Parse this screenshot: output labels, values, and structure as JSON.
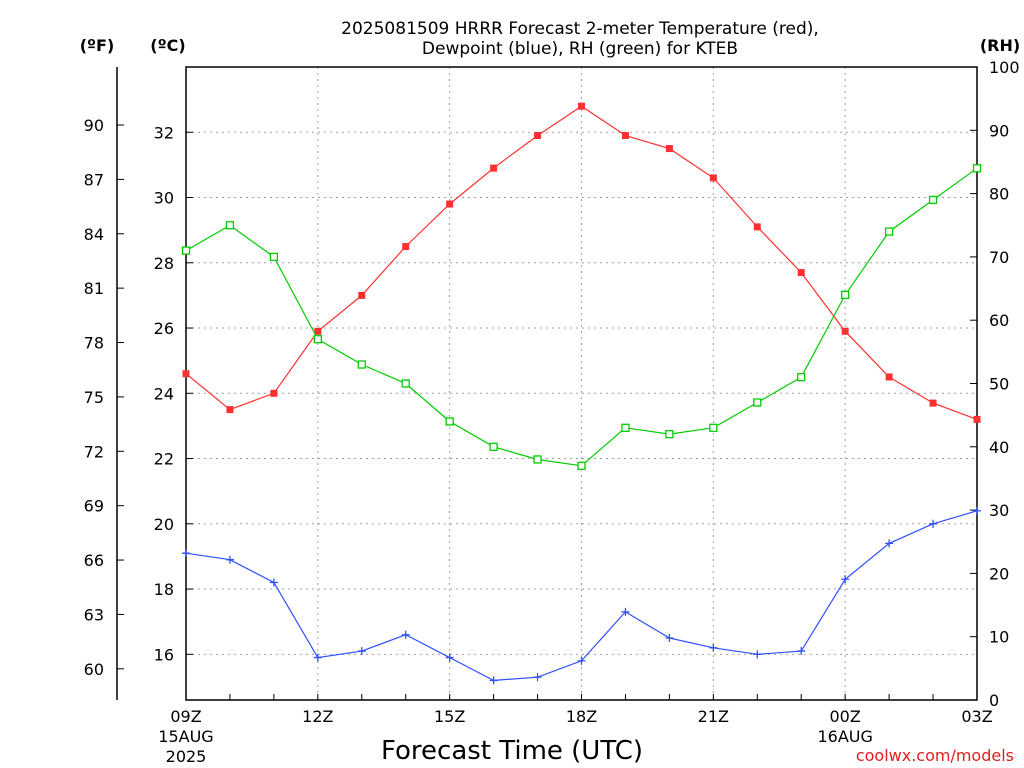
{
  "chart_data": {
    "type": "line",
    "title_line1": "2025081509 HRRR Forecast 2-meter Temperature (red),",
    "title_line2": "Dewpoint (blue), RH (green) for KTEB",
    "xlabel": "Forecast Time (UTC)",
    "credit": "coolwx.com/models",
    "units": {
      "fahrenheit": "(ºF)",
      "celsius": "(ºC)",
      "rh": "(RH)"
    },
    "x": [
      "09Z",
      "10Z",
      "11Z",
      "12Z",
      "13Z",
      "14Z",
      "15Z",
      "16Z",
      "17Z",
      "18Z",
      "19Z",
      "20Z",
      "21Z",
      "22Z",
      "23Z",
      "00Z",
      "01Z",
      "02Z",
      "03Z"
    ],
    "x_ticks": [
      {
        "index": 0,
        "label": "09Z",
        "sub1": "15AUG",
        "sub2": "2025"
      },
      {
        "index": 3,
        "label": "12Z",
        "sub1": "",
        "sub2": ""
      },
      {
        "index": 6,
        "label": "15Z",
        "sub1": "",
        "sub2": ""
      },
      {
        "index": 9,
        "label": "18Z",
        "sub1": "",
        "sub2": ""
      },
      {
        "index": 12,
        "label": "21Z",
        "sub1": "",
        "sub2": ""
      },
      {
        "index": 15,
        "label": "00Z",
        "sub1": "16AUG",
        "sub2": ""
      },
      {
        "index": 18,
        "label": "03Z",
        "sub1": "",
        "sub2": ""
      }
    ],
    "ylim_c": [
      14.6,
      34.0
    ],
    "ylim_rh": [
      0,
      100
    ],
    "celsius_ticks": [
      16,
      18,
      20,
      22,
      24,
      26,
      28,
      30,
      32
    ],
    "fahrenheit_ticks": [
      60,
      63,
      66,
      69,
      72,
      75,
      78,
      81,
      84,
      87,
      90
    ],
    "rh_ticks": [
      0,
      10,
      20,
      30,
      40,
      50,
      60,
      70,
      80,
      90,
      100
    ],
    "grid": true,
    "series": [
      {
        "key": "temp",
        "color": "#ff3030",
        "marker": "filled-square",
        "values": [
          24.6,
          23.5,
          24.0,
          25.9,
          27.0,
          28.5,
          29.8,
          30.9,
          31.9,
          32.8,
          31.9,
          31.5,
          30.6,
          29.1,
          27.7,
          25.9,
          24.5,
          23.7,
          23.2
        ]
      },
      {
        "key": "dewpoint",
        "color": "#3050ff",
        "marker": "plus",
        "values": [
          19.1,
          18.9,
          18.2,
          15.9,
          16.1,
          16.6,
          15.9,
          15.2,
          15.3,
          15.8,
          17.3,
          16.5,
          16.2,
          16.0,
          16.1,
          18.3,
          19.4,
          20.0,
          20.4
        ]
      },
      {
        "key": "rh",
        "color": "#00cc00",
        "marker": "open-square",
        "values": [
          71,
          75,
          70,
          57,
          53,
          50,
          44,
          40,
          38,
          37,
          43,
          42,
          43,
          47,
          51,
          64,
          74,
          79,
          84
        ]
      }
    ]
  }
}
